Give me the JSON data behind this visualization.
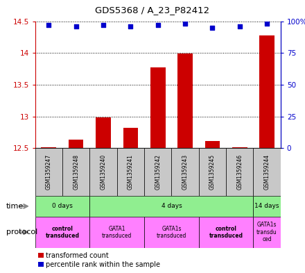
{
  "title": "GDS5368 / A_23_P82412",
  "samples": [
    "GSM1359247",
    "GSM1359248",
    "GSM1359240",
    "GSM1359241",
    "GSM1359242",
    "GSM1359243",
    "GSM1359245",
    "GSM1359246",
    "GSM1359244"
  ],
  "transformed_counts": [
    12.52,
    12.64,
    12.99,
    12.82,
    13.77,
    13.99,
    12.61,
    12.51,
    14.28
  ],
  "percentile_ranks": [
    97,
    96,
    97,
    96,
    97,
    98,
    95,
    96,
    98
  ],
  "ylim_left": [
    12.5,
    14.5
  ],
  "ylim_right": [
    0,
    100
  ],
  "yticks_left": [
    12.5,
    13.0,
    13.5,
    14.0,
    14.5
  ],
  "yticks_right": [
    0,
    25,
    50,
    75,
    100
  ],
  "ytick_labels_right": [
    "0",
    "25",
    "50",
    "75",
    "100%"
  ],
  "bar_color": "#CC0000",
  "dot_color": "#0000CC",
  "bar_width": 0.55,
  "sample_box_color": "#C8C8C8",
  "left_axis_color": "#CC0000",
  "right_axis_color": "#0000CC",
  "time_groups": [
    {
      "label": "0 days",
      "start": 0,
      "end": 2
    },
    {
      "label": "4 days",
      "start": 2,
      "end": 8
    },
    {
      "label": "14 days",
      "start": 8,
      "end": 9
    }
  ],
  "protocol_groups": [
    {
      "label": "control\ntransduced",
      "start": 0,
      "end": 2,
      "bold": true
    },
    {
      "label": "GATA1\ntransduced",
      "start": 2,
      "end": 4,
      "bold": false
    },
    {
      "label": "GATA1s\ntransduced",
      "start": 4,
      "end": 6,
      "bold": false
    },
    {
      "label": "control\ntransduced",
      "start": 6,
      "end": 8,
      "bold": true
    },
    {
      "label": "GATA1s\ntransdu\nced",
      "start": 8,
      "end": 9,
      "bold": false
    }
  ],
  "time_color": "#90EE90",
  "protocol_color": "#FF80FF"
}
